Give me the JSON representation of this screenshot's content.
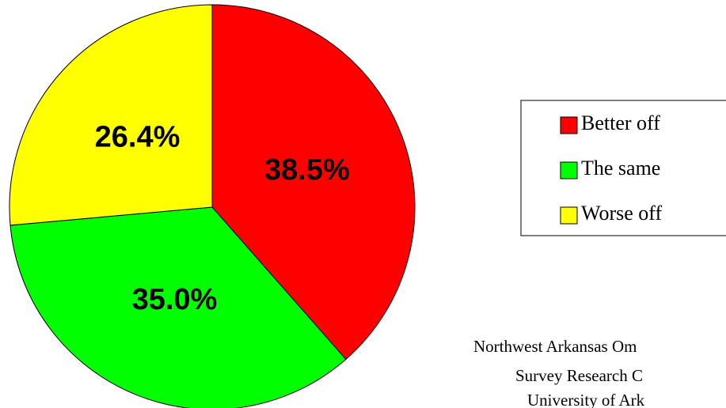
{
  "chart_data": {
    "type": "pie",
    "categories": [
      "Better off",
      "The same",
      "Worse off"
    ],
    "values": [
      38.5,
      35.0,
      26.4
    ],
    "value_labels": [
      "38.5%",
      "35.0%",
      "26.4%"
    ],
    "colors": [
      "#ff0000",
      "#00ff00",
      "#ffff00"
    ],
    "legend": "right",
    "source": [
      "Northwest Arkansas Om",
      "Survey Research C",
      "University of Ark"
    ]
  }
}
